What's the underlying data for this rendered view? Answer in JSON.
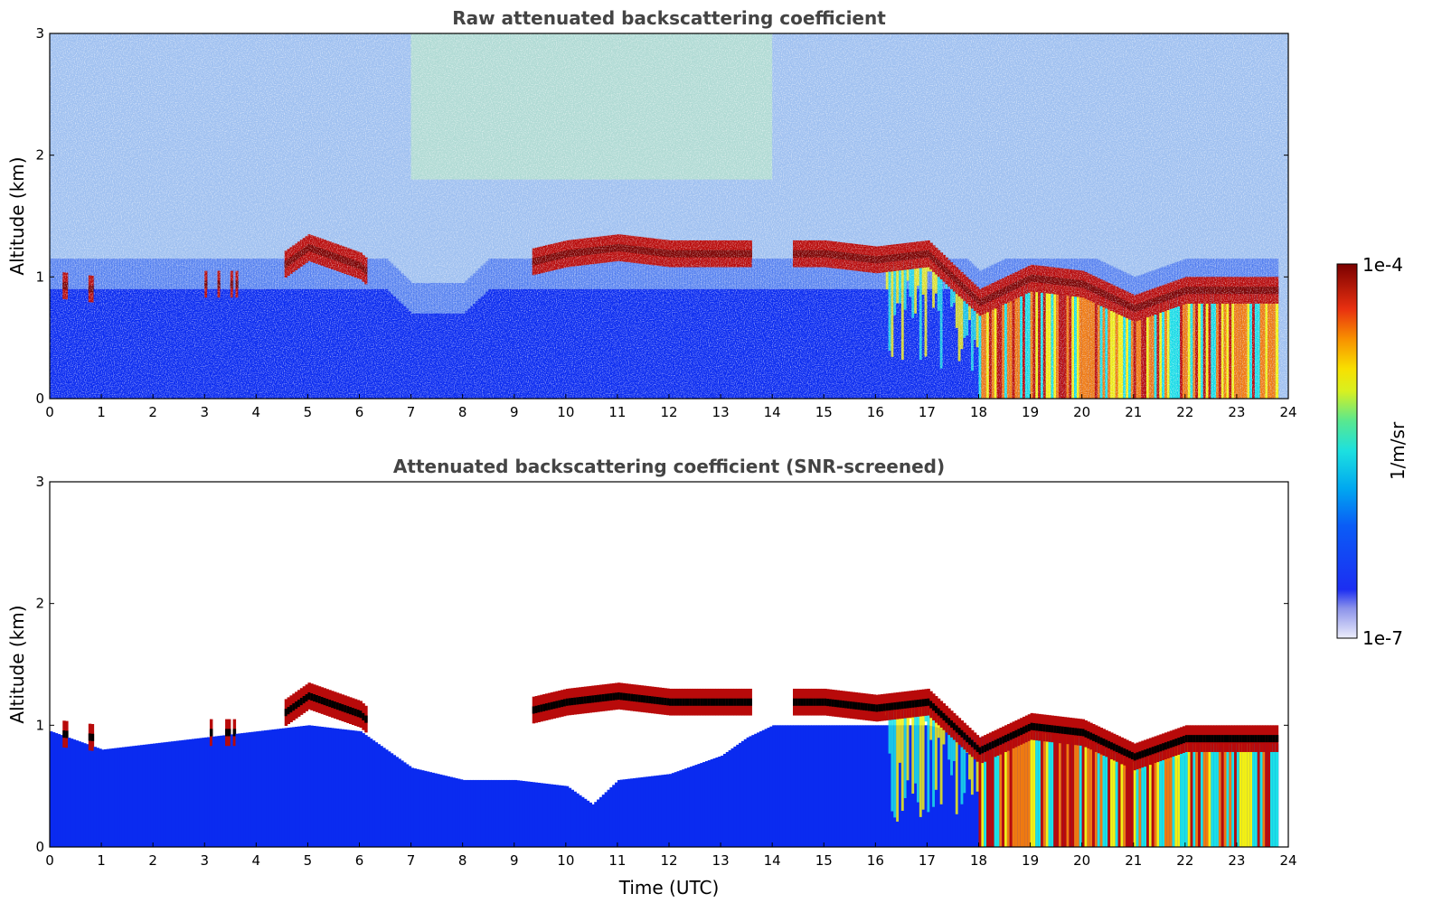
{
  "chart_data": [
    {
      "type": "heatmap",
      "title": "Raw attenuated backscattering coefficient",
      "xlabel": "",
      "ylabel": "Altitude (km)",
      "xlim": [
        0,
        24
      ],
      "ylim": [
        0,
        3
      ],
      "xticks": [
        0,
        1,
        2,
        3,
        4,
        5,
        6,
        7,
        8,
        9,
        10,
        11,
        12,
        13,
        14,
        15,
        16,
        17,
        18,
        19,
        20,
        21,
        22,
        23,
        24
      ],
      "yticks": [
        0,
        1,
        2,
        3
      ],
      "screened": false,
      "cloud_top_km": [
        [
          0,
          0.95
        ],
        [
          1,
          0.9
        ],
        [
          2,
          0.9
        ],
        [
          3,
          0.95
        ],
        [
          4,
          0.95
        ],
        [
          5,
          1.25
        ],
        [
          6,
          1.1
        ],
        [
          7,
          0.7
        ],
        [
          8,
          0.7
        ],
        [
          9,
          1.1
        ],
        [
          10,
          1.2
        ],
        [
          11,
          1.25
        ],
        [
          12,
          1.2
        ],
        [
          13,
          1.2
        ],
        [
          14,
          1.2
        ],
        [
          15,
          1.2
        ],
        [
          16,
          1.15
        ],
        [
          17,
          1.2
        ],
        [
          18,
          0.8
        ],
        [
          19,
          1.0
        ],
        [
          20,
          0.95
        ],
        [
          21,
          0.75
        ],
        [
          22,
          0.9
        ],
        [
          23,
          0.9
        ],
        [
          23.8,
          0.9
        ]
      ]
    },
    {
      "type": "heatmap",
      "title": "Attenuated backscattering coefficient (SNR-screened)",
      "xlabel": "Time (UTC)",
      "ylabel": "Altitude (km)",
      "xlim": [
        0,
        24
      ],
      "ylim": [
        0,
        3
      ],
      "xticks": [
        0,
        1,
        2,
        3,
        4,
        5,
        6,
        7,
        8,
        9,
        10,
        11,
        12,
        13,
        14,
        15,
        16,
        17,
        18,
        19,
        20,
        21,
        22,
        23,
        24
      ],
      "yticks": [
        0,
        1,
        2,
        3
      ],
      "screened": true,
      "snr_top_km": [
        [
          0,
          0.95
        ],
        [
          1,
          0.8
        ],
        [
          2,
          0.85
        ],
        [
          3,
          0.9
        ],
        [
          4,
          0.95
        ],
        [
          5,
          1.0
        ],
        [
          6,
          0.95
        ],
        [
          7,
          0.65
        ],
        [
          8,
          0.55
        ],
        [
          9,
          0.55
        ],
        [
          10,
          0.5
        ],
        [
          10.5,
          0.35
        ],
        [
          11,
          0.55
        ],
        [
          12,
          0.6
        ],
        [
          13,
          0.75
        ],
        [
          13.5,
          0.9
        ],
        [
          14,
          1.0
        ],
        [
          15,
          1.0
        ],
        [
          16,
          1.0
        ],
        [
          17,
          1.0
        ],
        [
          18,
          0.9
        ],
        [
          19,
          0.9
        ],
        [
          20,
          0.85
        ],
        [
          21,
          0.6
        ],
        [
          22,
          0.75
        ],
        [
          23,
          0.85
        ],
        [
          23.8,
          0.85
        ]
      ]
    }
  ],
  "colorbar": {
    "label": "1/m/sr",
    "max_label": "1e-4",
    "min_label": "1e-7",
    "scale": "log",
    "range": [
      1e-07,
      0.0001
    ]
  },
  "colors": {
    "low": "#d8daf6",
    "blue": "#0a2bf0",
    "cyan": "#1ce0e6",
    "yellow": "#f2f014",
    "orange": "#f07a10",
    "red": "#b80a0a",
    "dark_red": "#7a0000"
  }
}
